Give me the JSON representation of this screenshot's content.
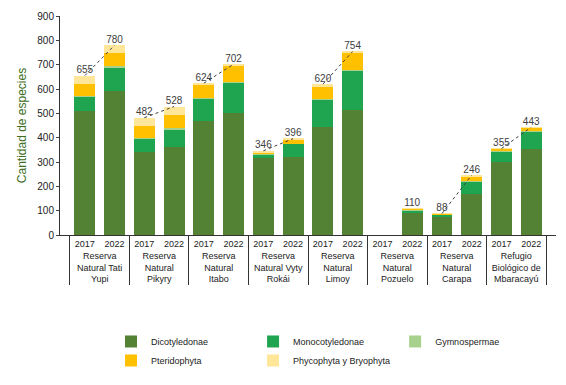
{
  "chart_data": {
    "type": "bar",
    "stacked": true,
    "y_label": "Cantidad de especies",
    "categories": [
      [
        "Reserva Natural Tati Yupi",
        "2017"
      ],
      [
        "Reserva Natural Tati Yupi",
        "2022"
      ],
      [
        "Reserva Natural Pikyry",
        "2017"
      ],
      [
        "Reserva Natural Pikyry",
        "2022"
      ],
      [
        "Reserva Natural Itabo",
        "2017"
      ],
      [
        "Reserva Natural Itabo",
        "2022"
      ],
      [
        "Reserva Natural Vyty Rokái",
        "2017"
      ],
      [
        "Reserva Natural Vyty Rokái",
        "2022"
      ],
      [
        "Reserva Natural Limoy",
        "2017"
      ],
      [
        "Reserva Natural Limoy",
        "2022"
      ],
      [
        "Reserva Natural Pozuelo",
        "2017"
      ],
      [
        "Reserva Natural Pozuelo",
        "2022"
      ],
      [
        "Reserva Natural Carapa",
        "2017"
      ],
      [
        "Reserva Natural Carapa",
        "2022"
      ],
      [
        "Refugio Biológico de Mbaracayú",
        "2017"
      ],
      [
        "Refugio Biológico de Mbaracayú",
        "2022"
      ]
    ],
    "series": [
      {
        "name": "Dicotyledonae",
        "color": "#548235",
        "values": [
          510,
          590,
          340,
          360,
          470,
          500,
          315,
          320,
          445,
          515,
          null,
          90,
          75,
          170,
          300,
          355
        ]
      },
      {
        "name": "Monocotyledonae",
        "color": "#1fa550",
        "values": [
          60,
          100,
          55,
          75,
          90,
          125,
          15,
          55,
          110,
          160,
          null,
          12,
          8,
          50,
          45,
          70
        ]
      },
      {
        "name": "Gymnospermae",
        "color": "#a9d18e",
        "values": [
          2,
          3,
          2,
          3,
          2,
          3,
          1,
          1,
          2,
          3,
          null,
          1,
          0,
          1,
          1,
          2
        ]
      },
      {
        "name": "Pteridophyta",
        "color": "#ffc000",
        "values": [
          50,
          55,
          50,
          55,
          55,
          65,
          10,
          15,
          55,
          70,
          null,
          6,
          4,
          20,
          8,
          14
        ]
      },
      {
        "name": "Phycophyta y Bryophyta",
        "color": "#ffe699",
        "values": [
          33,
          32,
          35,
          35,
          7,
          9,
          5,
          5,
          8,
          6,
          null,
          1,
          1,
          5,
          1,
          2
        ]
      }
    ],
    "totals": [
      655,
      780,
      482,
      528,
      624,
      702,
      346,
      396,
      620,
      754,
      null,
      110,
      88,
      246,
      355,
      443
    ],
    "ylim": [
      0,
      900
    ],
    "yticks": [
      0,
      100,
      200,
      300,
      400,
      500,
      600,
      700,
      800,
      900
    ],
    "grid": false,
    "legend": "bottom"
  }
}
